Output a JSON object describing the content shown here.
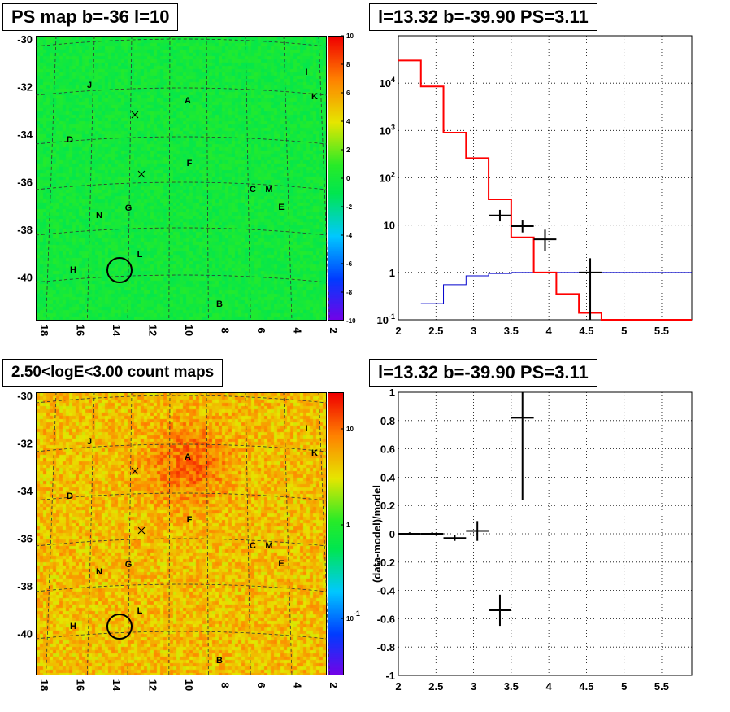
{
  "titles": {
    "map1": "PS map b=-36 l=10",
    "spec": "l=13.32 b=-39.90 PS=3.11",
    "map2": "2.50<logE<3.00 count maps",
    "resid": "l=13.32 b=-39.90 PS=3.11"
  },
  "map_labels": [
    "A",
    "B",
    "C",
    "D",
    "E",
    "F",
    "G",
    "H",
    "I",
    "J",
    "K",
    "L",
    "M",
    "N"
  ],
  "colors": {
    "data_points": "#000000",
    "model_total": "#ff0000",
    "model_component": "#0000cc"
  },
  "chart_data": [
    {
      "type": "heatmap",
      "title": "PS map b=-36 l=10",
      "x_ticks": [
        "18",
        "16",
        "14",
        "12",
        "10",
        "8",
        "6",
        "4",
        "2"
      ],
      "y_ticks": [
        "-30",
        "-32",
        "-34",
        "-36",
        "-38",
        "-40"
      ],
      "colorbar_ticks": [
        "10",
        "8",
        "6",
        "4",
        "2",
        "0",
        "-2",
        "-4",
        "-6",
        "-8",
        "-10"
      ],
      "colorbar_range": [
        -10,
        10
      ],
      "source_labels": [
        "A",
        "B",
        "C",
        "D",
        "E",
        "F",
        "G",
        "H",
        "I",
        "J",
        "K",
        "L",
        "M",
        "N"
      ],
      "highlight": {
        "l": 13.32,
        "b": -39.9
      }
    },
    {
      "type": "line",
      "title": "l=13.32 b=-39.90 PS=3.11",
      "y_scale": "log",
      "xlim": [
        2,
        5.9
      ],
      "ylim": [
        0.1,
        100000
      ],
      "x_ticks": [
        "2",
        "2.5",
        "3",
        "3.5",
        "4",
        "4.5",
        "5",
        "5.5"
      ],
      "y_ticks": [
        "10^-1",
        "1",
        "10",
        "10^2",
        "10^3",
        "10^4"
      ],
      "grid": true,
      "series": [
        {
          "style": "histogram",
          "color": "red",
          "bins": [
            [
              2.0,
              2.3,
              30000
            ],
            [
              2.3,
              2.6,
              8500
            ],
            [
              2.6,
              2.9,
              900
            ],
            [
              2.9,
              3.2,
              260
            ],
            [
              3.2,
              3.5,
              35
            ],
            [
              3.5,
              3.8,
              5.5
            ],
            [
              3.8,
              4.1,
              1.0
            ],
            [
              4.1,
              4.4,
              0.35
            ],
            [
              4.4,
              4.7,
              0.14
            ],
            [
              4.7,
              5.9,
              0.1
            ]
          ]
        },
        {
          "style": "histogram",
          "color": "blue",
          "bins": [
            [
              2.3,
              2.6,
              0.22
            ],
            [
              2.6,
              2.9,
              0.55
            ],
            [
              2.9,
              3.2,
              0.85
            ],
            [
              3.2,
              3.5,
              0.95
            ],
            [
              3.5,
              3.8,
              1.0
            ],
            [
              3.8,
              5.9,
              1.0
            ]
          ]
        },
        {
          "style": "errorbars",
          "color": "black",
          "points": [
            [
              3.35,
              16,
              3.2,
              3.5,
              12,
              21
            ],
            [
              3.65,
              9.5,
              3.5,
              3.8,
              7,
              13
            ],
            [
              3.95,
              5,
              3.8,
              4.1,
              2.8,
              8
            ],
            [
              4.55,
              1.0,
              4.4,
              4.7,
              0.1,
              2.0
            ]
          ]
        }
      ]
    },
    {
      "type": "heatmap",
      "title": "2.50<logE<3.00 count maps",
      "x_ticks": [
        "18",
        "16",
        "14",
        "12",
        "10",
        "8",
        "6",
        "4",
        "2"
      ],
      "y_ticks": [
        "-30",
        "-32",
        "-34",
        "-36",
        "-38",
        "-40"
      ],
      "colorbar_ticks": [
        "10",
        "1",
        "10^-1"
      ],
      "colorbar_scale": "log",
      "source_labels": [
        "A",
        "B",
        "C",
        "D",
        "E",
        "F",
        "G",
        "H",
        "I",
        "J",
        "K",
        "L",
        "M",
        "N"
      ],
      "highlight": {
        "l": 13.32,
        "b": -39.9
      }
    },
    {
      "type": "scatter",
      "title": "l=13.32 b=-39.90 PS=3.11",
      "ylabel": "(data-model)/model",
      "xlim": [
        2,
        5.9
      ],
      "ylim": [
        -1,
        1
      ],
      "x_ticks": [
        "2",
        "2.5",
        "3",
        "3.5",
        "4",
        "4.5",
        "5",
        "5.5"
      ],
      "y_ticks": [
        "1",
        "0.8",
        "0.6",
        "0.4",
        "0.2",
        "0",
        "-0.2",
        "-0.4",
        "-0.6",
        "-0.8",
        "-1"
      ],
      "grid": true,
      "points": [
        [
          2.15,
          0.0,
          2.0,
          2.3,
          -0.01,
          0.01
        ],
        [
          2.45,
          0.0,
          2.3,
          2.6,
          -0.01,
          0.01
        ],
        [
          2.75,
          -0.03,
          2.6,
          2.9,
          -0.05,
          -0.01
        ],
        [
          3.05,
          0.02,
          2.9,
          3.2,
          -0.05,
          0.09
        ],
        [
          3.35,
          -0.54,
          3.2,
          3.5,
          -0.65,
          -0.43
        ],
        [
          3.65,
          0.82,
          3.5,
          3.8,
          0.24,
          1.0
        ]
      ]
    }
  ]
}
